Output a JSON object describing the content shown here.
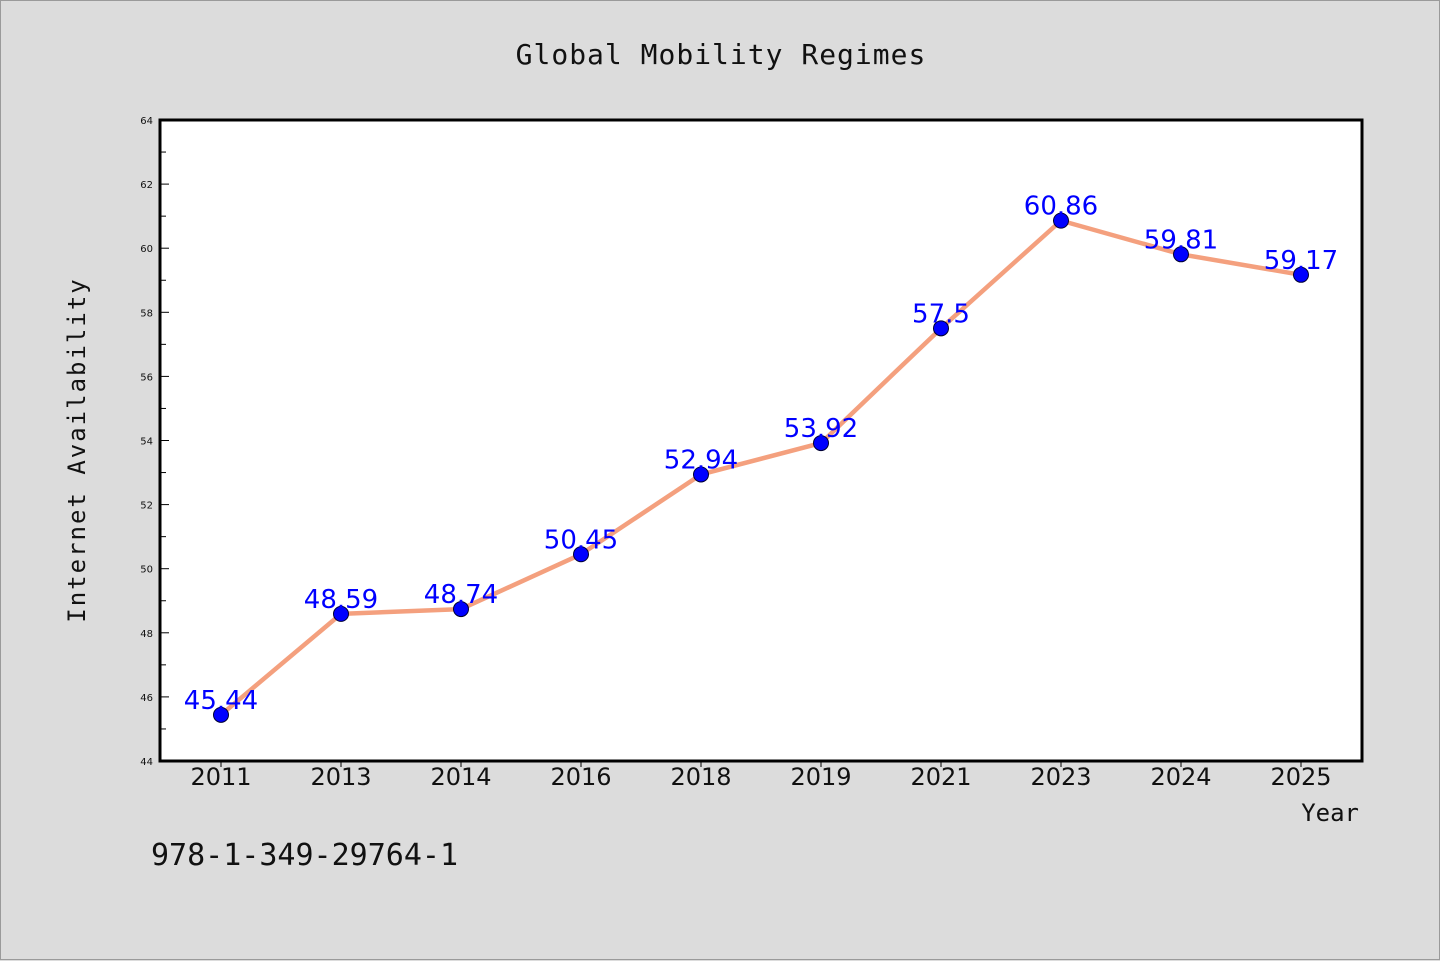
{
  "chart_data": {
    "type": "line",
    "title": "Global Mobility Regimes",
    "xlabel": "Year",
    "ylabel": "Internet Availability",
    "categories": [
      "2011",
      "2013",
      "2014",
      "2016",
      "2018",
      "2019",
      "2021",
      "2023",
      "2024",
      "2025"
    ],
    "values": [
      45.44,
      48.59,
      48.74,
      50.45,
      52.94,
      53.92,
      57.5,
      60.86,
      59.81,
      59.17
    ],
    "data_labels": [
      "45.44",
      "48.59",
      "48.74",
      "50.45",
      "52.94",
      "53.92",
      "57.5",
      "60.86",
      "59.81",
      "59.17"
    ],
    "ylim": [
      44,
      64
    ],
    "yticks": [
      "44",
      "46",
      "48",
      "50",
      "52",
      "54",
      "56",
      "58",
      "60",
      "62",
      "64"
    ],
    "grid": false,
    "legend": "none",
    "colors": {
      "line": "#f4a07e",
      "marker": "#0000ff",
      "label": "#0000ff",
      "background": "#dcdcdc",
      "plot": "#ffffff"
    }
  },
  "annotation": "978-1-349-29764-1"
}
